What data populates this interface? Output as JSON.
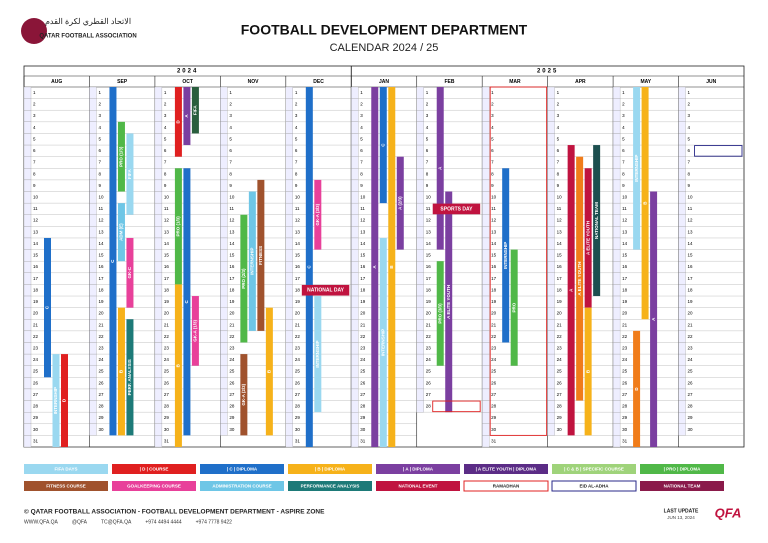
{
  "header": {
    "org_arabic": "الاتحاد القطري لكرة القدم",
    "org": "QATAR FOOTBALL ASSOCIATION",
    "title": "FOOTBALL DEVELOPMENT DEPARTMENT",
    "subtitle": "CALENDAR 2024 / 25"
  },
  "years": [
    {
      "label": "2024",
      "months": 5
    },
    {
      "label": "2025",
      "months": 6
    }
  ],
  "months": [
    {
      "name": "AUG",
      "days": [
        1,
        2,
        3,
        4,
        5,
        6,
        7,
        8,
        9,
        10,
        11,
        12,
        13,
        14,
        15,
        16,
        17,
        18,
        19,
        20,
        21,
        22,
        23,
        24,
        25,
        26,
        27,
        28,
        29,
        30,
        31
      ],
      "events": [
        {
          "label": "C",
          "color": "#1f6fc9",
          "start": 14,
          "end": 25
        },
        {
          "label": "INTERNSHIP",
          "color": "#9ad8f0",
          "start": 24,
          "end": 31
        },
        {
          "label": "D",
          "color": "#e02020",
          "start": 24,
          "end": 31
        }
      ]
    },
    {
      "name": "SEP",
      "days": [
        1,
        2,
        3,
        4,
        5,
        6,
        7,
        8,
        9,
        10,
        11,
        12,
        13,
        14,
        15,
        16,
        17,
        18,
        19,
        20,
        21,
        22,
        23,
        24,
        25,
        26,
        27,
        28,
        29,
        30
      ],
      "events": [
        {
          "label": "C",
          "color": "#1f6fc9",
          "start": 1,
          "end": 30
        },
        {
          "label": "PRO (1/3)",
          "color": "#50b848",
          "start": 4,
          "end": 9
        },
        {
          "label": "FIFA",
          "color": "#9ad8f0",
          "start": 5,
          "end": 11
        },
        {
          "label": "ADM (E)",
          "color": "#6ec6e6",
          "start": 11,
          "end": 15
        },
        {
          "label": "GK-C",
          "color": "#e8409a",
          "start": 14,
          "end": 19
        },
        {
          "label": "B",
          "color": "#f6b21a",
          "start": 20,
          "end": 30
        },
        {
          "label": "PERF. ANALYSIS",
          "color": "#1d7a78",
          "start": 21,
          "end": 30
        }
      ]
    },
    {
      "name": "OCT",
      "days": [
        1,
        2,
        3,
        4,
        5,
        6,
        7,
        8,
        9,
        10,
        11,
        12,
        13,
        14,
        15,
        16,
        17,
        18,
        19,
        20,
        21,
        22,
        23,
        24,
        25,
        26,
        27,
        28,
        29,
        30,
        31
      ],
      "events": [
        {
          "label": "D",
          "color": "#e02020",
          "start": 1,
          "end": 6
        },
        {
          "label": "A",
          "color": "#7b3fa0",
          "start": 1,
          "end": 5
        },
        {
          "label": "FIFA",
          "color": "#2a5e3e",
          "start": 1,
          "end": 4
        },
        {
          "label": "PRO (1/3)",
          "color": "#50b848",
          "start": 8,
          "end": 17
        },
        {
          "label": "C",
          "color": "#1f6fc9",
          "start": 8,
          "end": 30
        },
        {
          "label": "B",
          "color": "#f6b21a",
          "start": 18,
          "end": 31
        },
        {
          "label": "GK-A (1/3)",
          "color": "#e8409a",
          "start": 19,
          "end": 24
        }
      ]
    },
    {
      "name": "NOV",
      "days": [
        1,
        2,
        3,
        4,
        5,
        6,
        7,
        8,
        9,
        10,
        11,
        12,
        13,
        14,
        15,
        16,
        17,
        18,
        19,
        20,
        21,
        22,
        23,
        24,
        25,
        26,
        27,
        28,
        29,
        30
      ],
      "events": [
        {
          "label": "PRO (2/3)",
          "color": "#50b848",
          "start": 12,
          "end": 22
        },
        {
          "label": "INTERNSHIP",
          "color": "#6ec6e6",
          "start": 10,
          "end": 21
        },
        {
          "label": "FITNESS",
          "color": "#a0522d",
          "start": 9,
          "end": 21
        },
        {
          "label": "B",
          "color": "#f6b21a",
          "start": 20,
          "end": 30
        },
        {
          "label": "GK-A (2/3)",
          "color": "#a0522d",
          "start": 24,
          "end": 30
        }
      ]
    },
    {
      "name": "DEC",
      "days": [
        1,
        2,
        3,
        4,
        5,
        6,
        7,
        8,
        9,
        10,
        11,
        12,
        13,
        14,
        15,
        16,
        17,
        18,
        19,
        20,
        21,
        22,
        23,
        24,
        25,
        26,
        27,
        28,
        29,
        30,
        31
      ],
      "events": [
        {
          "label": "C",
          "color": "#1f6fc9",
          "start": 1,
          "end": 31
        },
        {
          "label": "GK-A (3/3)",
          "color": "#e8409a",
          "start": 9,
          "end": 14
        },
        {
          "label": "NATIONAL DAY",
          "color": "#c0133f",
          "start": 18,
          "end": 18
        },
        {
          "label": "INTERNSHIP",
          "color": "#9ad8f0",
          "start": 19,
          "end": 28
        }
      ]
    },
    {
      "name": "JAN",
      "days": [
        1,
        2,
        3,
        4,
        5,
        6,
        7,
        8,
        9,
        10,
        11,
        12,
        13,
        14,
        15,
        16,
        17,
        18,
        19,
        20,
        21,
        22,
        23,
        24,
        25,
        26,
        27,
        28,
        29,
        30,
        31
      ],
      "events": [
        {
          "label": "A",
          "color": "#7b3fa0",
          "start": 1,
          "end": 31
        },
        {
          "label": "C",
          "color": "#1f6fc9",
          "start": 1,
          "end": 10
        },
        {
          "label": "B",
          "color": "#f6b21a",
          "start": 1,
          "end": 31
        },
        {
          "label": "A (2/3)",
          "color": "#7b3fa0",
          "start": 7,
          "end": 14
        },
        {
          "label": "INTERNSHIP",
          "color": "#9ad8f0",
          "start": 14,
          "end": 31
        }
      ]
    },
    {
      "name": "FEB",
      "days": [
        1,
        2,
        3,
        4,
        5,
        6,
        7,
        8,
        9,
        10,
        11,
        12,
        13,
        14,
        15,
        16,
        17,
        18,
        19,
        20,
        21,
        22,
        23,
        24,
        25,
        26,
        27,
        28
      ],
      "events": [
        {
          "label": "PRO (3/3)",
          "color": "#50b848",
          "start": 16,
          "end": 24
        },
        {
          "label": "A ELITE YOUTH",
          "color": "#7b3fa0",
          "start": 10,
          "end": 28
        },
        {
          "label": "A",
          "color": "#7b3fa0",
          "start": 1,
          "end": 14
        },
        {
          "label": "SPORTS DAY",
          "color": "#c0133f",
          "start": 11,
          "end": 11
        },
        {
          "label": "RAMADHAN",
          "color": "#e02020",
          "outline": true,
          "start": 28,
          "end": 28
        }
      ]
    },
    {
      "name": "MAR",
      "days": [
        1,
        2,
        3,
        4,
        5,
        6,
        7,
        8,
        9,
        10,
        11,
        12,
        13,
        14,
        15,
        16,
        17,
        18,
        19,
        20,
        21,
        22,
        23,
        24,
        25,
        26,
        27,
        28,
        29,
        30,
        31
      ],
      "events": [
        {
          "label": "RAMADHAN",
          "color": "#e02020",
          "outline": true,
          "start": 1,
          "end": 30
        },
        {
          "label": "INTERNSHIP",
          "color": "#1f6fc9",
          "start": 8,
          "end": 22
        },
        {
          "label": "PRO",
          "color": "#50b848",
          "start": 15,
          "end": 24
        }
      ]
    },
    {
      "name": "APR",
      "days": [
        1,
        2,
        3,
        4,
        5,
        6,
        7,
        8,
        9,
        10,
        11,
        12,
        13,
        14,
        15,
        16,
        17,
        18,
        19,
        20,
        21,
        22,
        23,
        24,
        25,
        26,
        27,
        28,
        29,
        30
      ],
      "events": [
        {
          "label": "A",
          "color": "#c0133f",
          "start": 6,
          "end": 30
        },
        {
          "label": "A ELITE YOUTH",
          "color": "#f07c1a",
          "start": 7,
          "end": 27
        },
        {
          "label": "A ELITE YOUTH",
          "color": "#c0133f",
          "start": 8,
          "end": 19
        },
        {
          "label": "NATIONAL TEAM",
          "color": "#1d4f4f",
          "start": 6,
          "end": 18
        },
        {
          "label": "B",
          "color": "#f6b21a",
          "start": 20,
          "end": 30
        }
      ]
    },
    {
      "name": "MAY",
      "days": [
        1,
        2,
        3,
        4,
        5,
        6,
        7,
        8,
        9,
        10,
        11,
        12,
        13,
        14,
        15,
        16,
        17,
        18,
        19,
        20,
        21,
        22,
        23,
        24,
        25,
        26,
        27,
        28,
        29,
        30,
        31
      ],
      "events": [
        {
          "label": "INTERNSHIP",
          "color": "#9ad8f0",
          "start": 1,
          "end": 14
        },
        {
          "label": "B",
          "color": "#f6b21a",
          "start": 1,
          "end": 20
        },
        {
          "label": "A",
          "color": "#7b3fa0",
          "start": 10,
          "end": 31
        },
        {
          "label": "D",
          "color": "#f07c1a",
          "start": 22,
          "end": 31
        }
      ]
    },
    {
      "name": "JUN",
      "days": [
        1,
        2,
        3,
        4,
        5,
        6,
        7,
        8,
        9,
        10,
        11,
        12,
        13,
        14,
        15,
        16,
        17,
        18,
        19,
        20,
        21,
        22,
        23,
        24,
        25,
        26,
        27,
        28,
        29,
        30
      ],
      "events": [
        {
          "label": "EID AL-ADHA",
          "color": "#2a2a8a",
          "outline": true,
          "start": 6,
          "end": 6
        }
      ]
    }
  ],
  "legend": [
    {
      "label": "FIFA DAYS",
      "color": "#9ad8f0"
    },
    {
      "label": "| D | COURSE",
      "color": "#e02020"
    },
    {
      "label": "| C | DIPLOMA",
      "color": "#1f6fc9"
    },
    {
      "label": "| B | DIPLOMA",
      "color": "#f6b21a"
    },
    {
      "label": "| A | DIPLOMA",
      "color": "#7b3fa0"
    },
    {
      "label": "| A ELITE YOUTH | DIPLOMA",
      "color": "#5b2c86"
    },
    {
      "label": "| C & B | SPECIFIC COURSE",
      "color": "#9fd37a"
    },
    {
      "label": "| PRO | DIPLOMA",
      "color": "#50b848"
    },
    {
      "label": "FITNESS COURSE",
      "color": "#a0522d"
    },
    {
      "label": "GOALKEEPING COURSE",
      "color": "#e8409a"
    },
    {
      "label": "ADMINISTRATION COURSE",
      "color": "#6ec6e6"
    },
    {
      "label": "PERFORMANCE ANALYSIS",
      "color": "#1d7a78"
    },
    {
      "label": "NATIONAL EVENT",
      "color": "#c0133f"
    },
    {
      "label": "RAMADHAN",
      "color": "#e02020",
      "outline": true
    },
    {
      "label": "EID AL-ADHA",
      "color": "#2a2a8a",
      "outline": true
    },
    {
      "label": "NATIONAL TEAM",
      "color": "#8a1a4a"
    }
  ],
  "footer": {
    "copyright": "© QATAR FOOTBALL ASSOCIATION - FOOTBALL DEVELOPMENT DEPARTMENT - ASPIRE ZONE",
    "contacts": [
      "WWW.QFA.QA",
      "@QFA",
      "TC@QFA.QA",
      "+974 4494 4444",
      "+974 7778 9422"
    ],
    "update_label": "LAST UPDATE",
    "update_date": "JUN 13, 2024",
    "logo": "QFA"
  }
}
